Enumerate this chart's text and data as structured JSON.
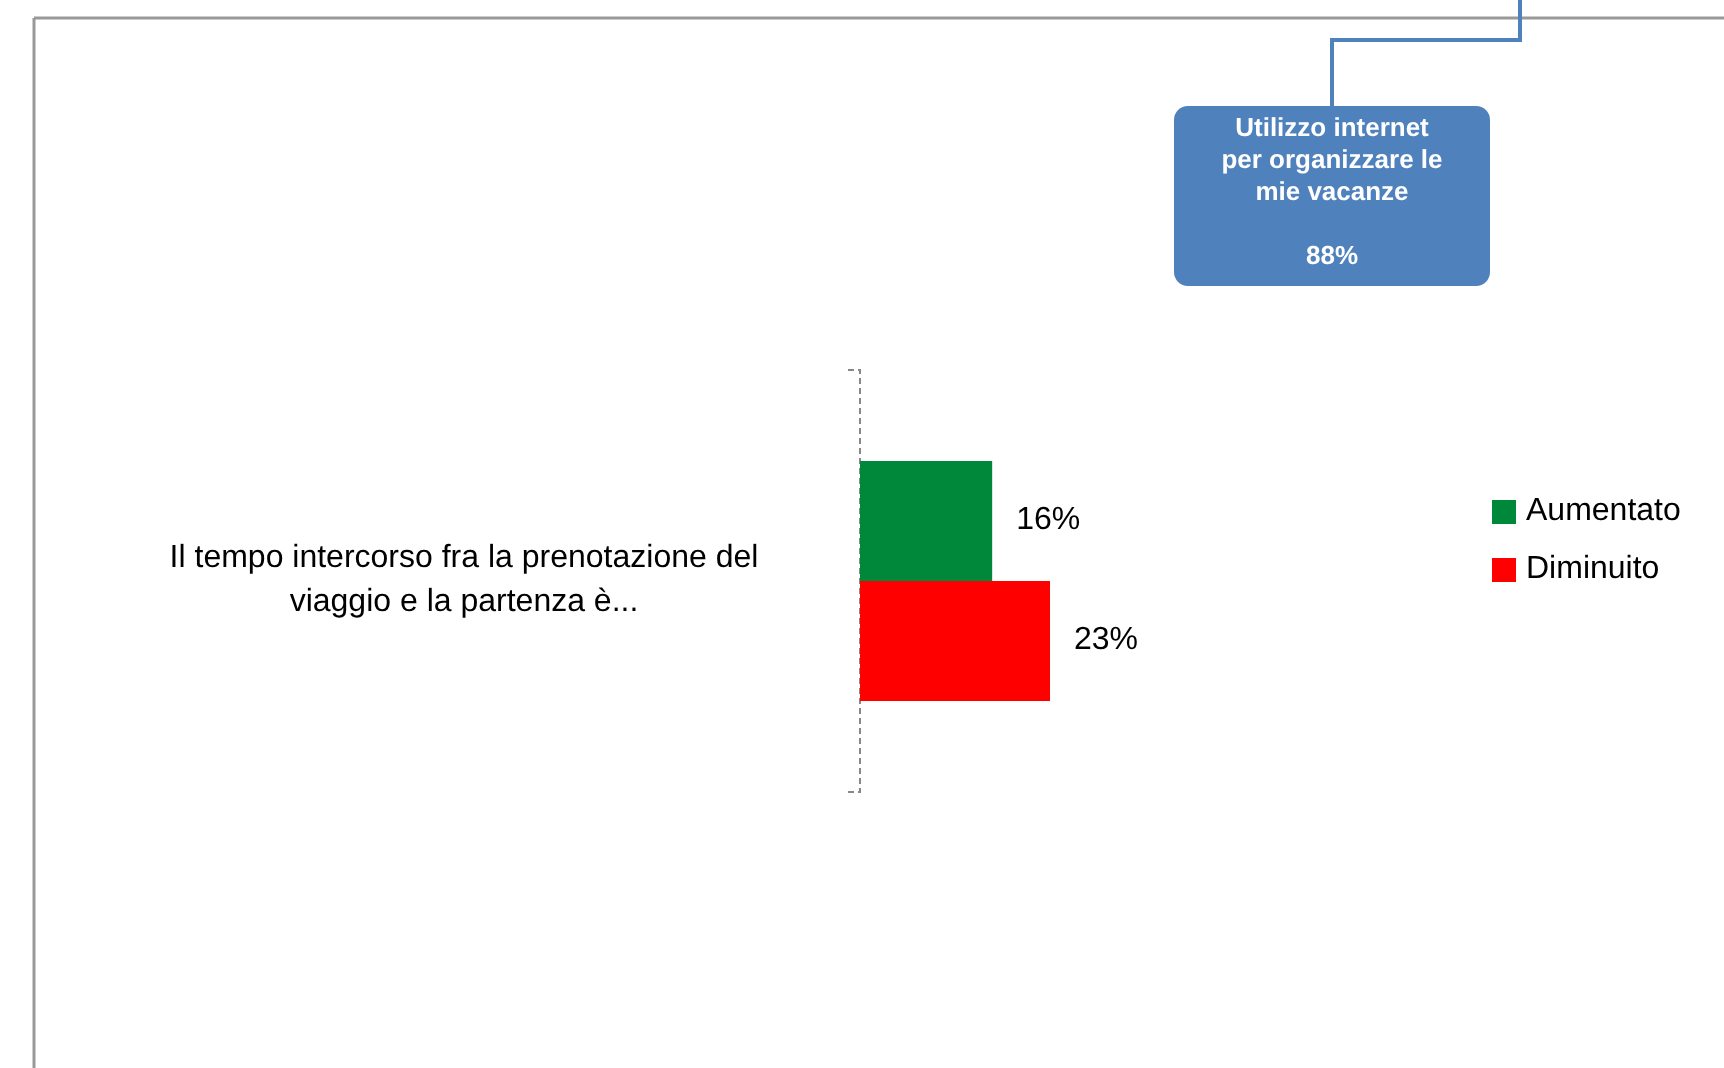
{
  "chart_data": {
    "type": "bar",
    "orientation": "horizontal",
    "categories": [
      "Il tempo intercorso fra la prenotazione del viaggio e la partenza è..."
    ],
    "series": [
      {
        "name": "Aumentato",
        "color": "#00883a",
        "values": [
          16
        ],
        "value_labels": [
          "16%"
        ]
      },
      {
        "name": "Diminuito",
        "color": "#ff0000",
        "values": [
          23
        ],
        "value_labels": [
          "23%"
        ]
      }
    ],
    "data_labels": true,
    "legend": "right",
    "annotations": [
      "Utilizzo internet per organizzare le mie vacanze",
      "88%"
    ]
  }
}
